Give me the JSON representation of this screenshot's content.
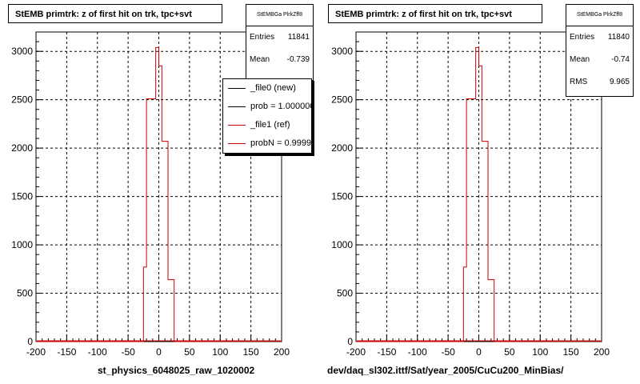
{
  "chart_data": [
    {
      "type": "histogram",
      "title": "StEMB primtrk: z of first hit on trk, tpc+svt",
      "xlabel": "st_physics_6048025_raw_1020002",
      "ylabel": "",
      "xlim": [
        -200,
        200
      ],
      "ylim": [
        0,
        3200
      ],
      "x_ticks": [
        "-200",
        "-150",
        "-100",
        "-50",
        "0",
        "50",
        "100",
        "150",
        "200"
      ],
      "y_ticks": [
        "0",
        "500",
        "1000",
        "1500",
        "2000",
        "2500",
        "3000"
      ],
      "grid": true,
      "bin_width": 5,
      "series": [
        {
          "name": "_file1 (ref)",
          "color": "#cc0000",
          "bins": [
            {
              "x0": -25,
              "x1": -20,
              "y": 770
            },
            {
              "x0": -20,
              "x1": -15,
              "y": 2510
            },
            {
              "x0": -15,
              "x1": -10,
              "y": 2510
            },
            {
              "x0": -10,
              "x1": -5,
              "y": 2510
            },
            {
              "x0": -5,
              "x1": 0,
              "y": 3040
            },
            {
              "x0": 0,
              "x1": 5,
              "y": 2850
            },
            {
              "x0": 5,
              "x1": 10,
              "y": 2070
            },
            {
              "x0": 10,
              "x1": 15,
              "y": 2070
            },
            {
              "x0": 15,
              "x1": 20,
              "y": 640
            },
            {
              "x0": 20,
              "x1": 25,
              "y": 640
            }
          ]
        }
      ],
      "stats": {
        "name": "StEMBGa PlrkZff8",
        "entries_label": "Entries",
        "entries": "11841",
        "mean_label": "Mean",
        "mean": "-0.739"
      },
      "legend": [
        {
          "label": "_file0 (new)",
          "color": "#000000"
        },
        {
          "label": "prob = 1.000000",
          "color": "#000000"
        },
        {
          "label": "_file1 (ref)",
          "color": "#cc0000"
        },
        {
          "label": "probN = 0.999989",
          "color": "#cc0000"
        }
      ]
    },
    {
      "type": "histogram",
      "title": "StEMB primtrk: z of first hit on trk, tpc+svt",
      "xlabel": "dev/daq_sl302.ittf/Sat/year_2005/CuCu200_MinBias/",
      "ylabel": "",
      "xlim": [
        -200,
        200
      ],
      "ylim": [
        0,
        3200
      ],
      "x_ticks": [
        "-200",
        "-150",
        "-100",
        "-50",
        "0",
        "50",
        "100",
        "150",
        "200"
      ],
      "y_ticks": [
        "0",
        "500",
        "1000",
        "1500",
        "2000",
        "2500",
        "3000"
      ],
      "grid": true,
      "bin_width": 5,
      "series": [
        {
          "name": "",
          "color": "#cc0000",
          "bins": [
            {
              "x0": -25,
              "x1": -20,
              "y": 770
            },
            {
              "x0": -20,
              "x1": -15,
              "y": 2510
            },
            {
              "x0": -15,
              "x1": -10,
              "y": 2510
            },
            {
              "x0": -10,
              "x1": -5,
              "y": 2510
            },
            {
              "x0": -5,
              "x1": 0,
              "y": 3040
            },
            {
              "x0": 0,
              "x1": 5,
              "y": 2850
            },
            {
              "x0": 5,
              "x1": 10,
              "y": 2070
            },
            {
              "x0": 10,
              "x1": 15,
              "y": 2070
            },
            {
              "x0": 15,
              "x1": 20,
              "y": 640
            },
            {
              "x0": 20,
              "x1": 25,
              "y": 640
            }
          ]
        }
      ],
      "stats": {
        "name": "StEMBGa PlrkZff8",
        "entries_label": "Entries",
        "entries": "11840",
        "mean_label": "Mean",
        "mean": "-0.74",
        "rms_label": "RMS",
        "rms": "9.965"
      }
    }
  ]
}
